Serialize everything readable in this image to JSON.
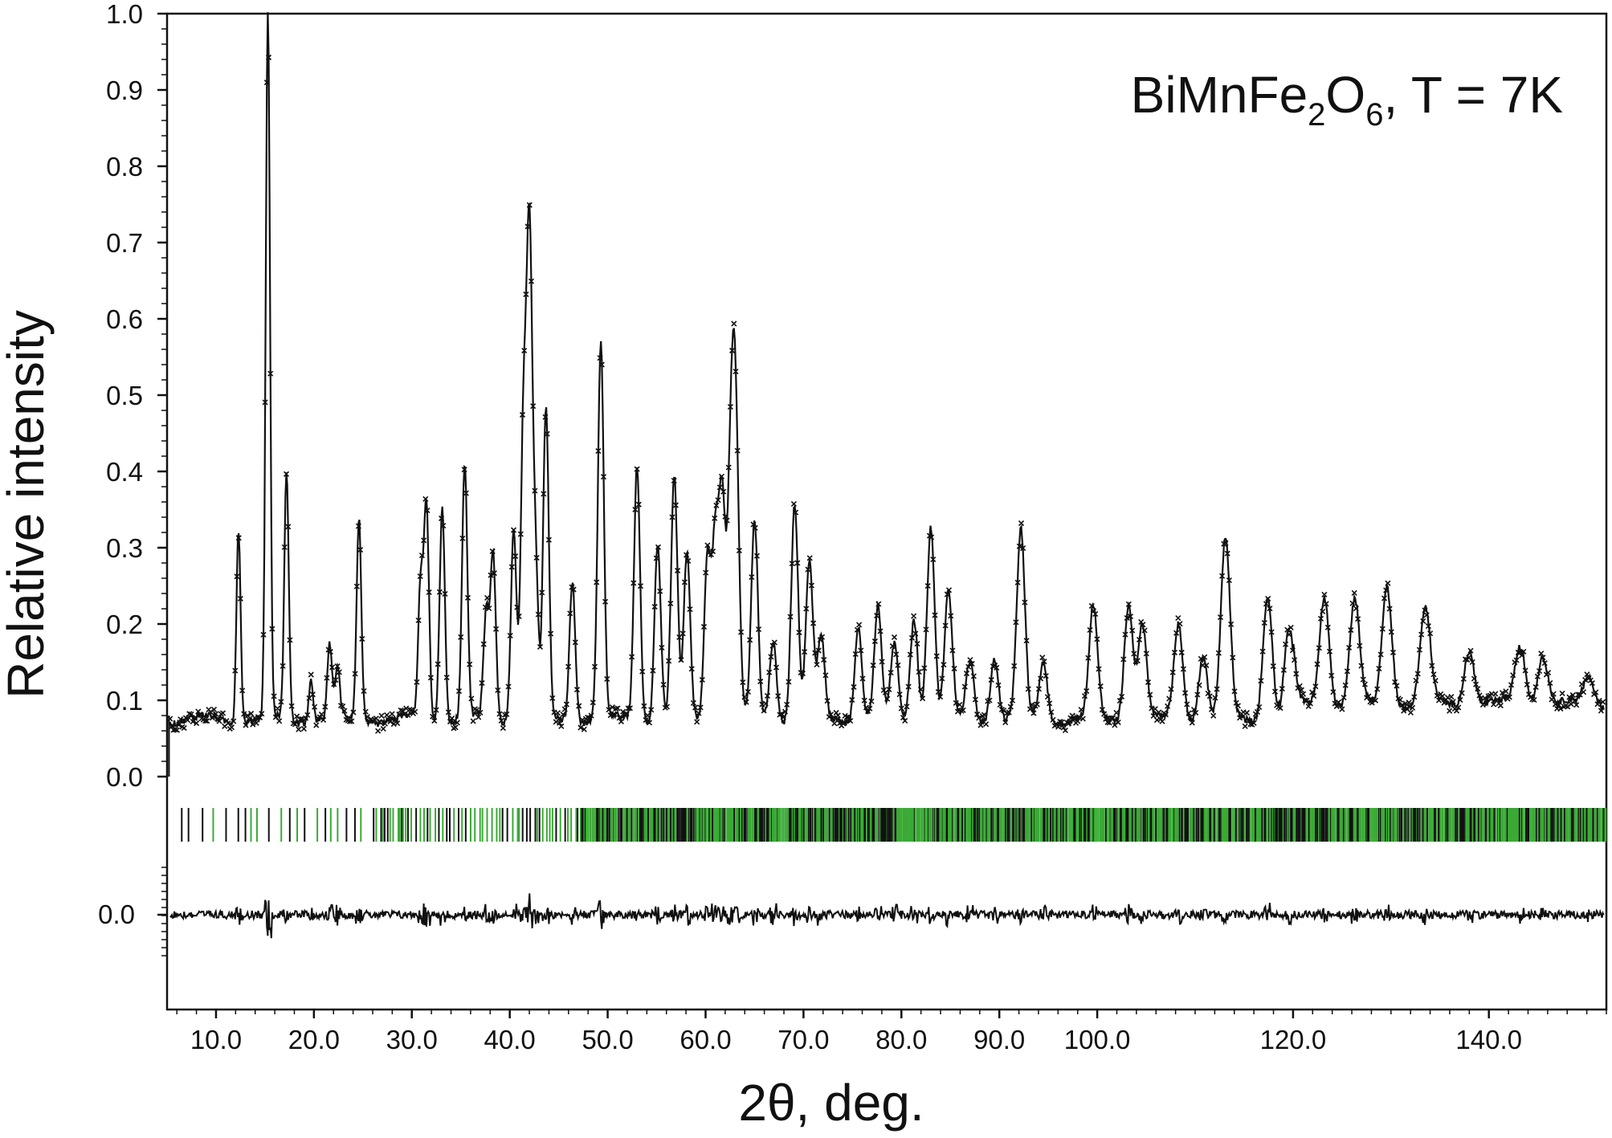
{
  "chart_data": {
    "type": "line",
    "title": "",
    "annotation": {
      "formula": "BiMnFe",
      "sub1": "2",
      "mid": "O",
      "sub2": "6",
      "tail": ", T = 7K"
    },
    "xlabel": "2θ, deg.",
    "ylabel": "Relative intensity",
    "xlim": [
      5,
      152
    ],
    "ylim": [
      0,
      1.0
    ],
    "grid": false,
    "legend": "none",
    "x_ticks": [
      10,
      20,
      30,
      40,
      50,
      60,
      70,
      80,
      90,
      100,
      120,
      140
    ],
    "x_tick_labels": [
      "10.0",
      "20.0",
      "30.0",
      "40.0",
      "50.0",
      "60.0",
      "70.0",
      "80.0",
      "90.0",
      "100.0",
      "120.0",
      "140.0"
    ],
    "y_ticks": [
      0,
      0.1,
      0.2,
      0.3,
      0.4,
      0.5,
      0.6,
      0.7,
      0.8,
      0.9,
      1.0
    ],
    "y_tick_labels": [
      "0.0",
      "0.1",
      "0.2",
      "0.3",
      "0.4",
      "0.5",
      "0.6",
      "0.7",
      "0.8",
      "0.9",
      "1.0"
    ],
    "difference_zero_label": "0.0",
    "background_level": 0.075,
    "peaks": [
      {
        "x": 12.3,
        "y": 0.33
      },
      {
        "x": 15.3,
        "y": 1.0
      },
      {
        "x": 17.2,
        "y": 0.4
      },
      {
        "x": 19.7,
        "y": 0.13
      },
      {
        "x": 21.6,
        "y": 0.17
      },
      {
        "x": 22.4,
        "y": 0.14
      },
      {
        "x": 24.6,
        "y": 0.34
      },
      {
        "x": 30.9,
        "y": 0.25
      },
      {
        "x": 31.5,
        "y": 0.35
      },
      {
        "x": 33.1,
        "y": 0.36
      },
      {
        "x": 35.4,
        "y": 0.41
      },
      {
        "x": 38.3,
        "y": 0.29
      },
      {
        "x": 37.6,
        "y": 0.21
      },
      {
        "x": 40.4,
        "y": 0.33
      },
      {
        "x": 41.4,
        "y": 0.46
      },
      {
        "x": 42.0,
        "y": 0.69
      },
      {
        "x": 42.6,
        "y": 0.28
      },
      {
        "x": 43.7,
        "y": 0.48
      },
      {
        "x": 46.4,
        "y": 0.26
      },
      {
        "x": 49.3,
        "y": 0.57
      },
      {
        "x": 53.0,
        "y": 0.41
      },
      {
        "x": 55.1,
        "y": 0.31
      },
      {
        "x": 56.8,
        "y": 0.39
      },
      {
        "x": 58.1,
        "y": 0.29
      },
      {
        "x": 60.2,
        "y": 0.29
      },
      {
        "x": 61.0,
        "y": 0.31
      },
      {
        "x": 61.7,
        "y": 0.36
      },
      {
        "x": 62.6,
        "y": 0.4
      },
      {
        "x": 63.1,
        "y": 0.42
      },
      {
        "x": 65.0,
        "y": 0.33
      },
      {
        "x": 66.9,
        "y": 0.18
      },
      {
        "x": 69.1,
        "y": 0.36
      },
      {
        "x": 70.6,
        "y": 0.28
      },
      {
        "x": 71.8,
        "y": 0.18
      },
      {
        "x": 75.6,
        "y": 0.2
      },
      {
        "x": 77.6,
        "y": 0.22
      },
      {
        "x": 79.3,
        "y": 0.17
      },
      {
        "x": 81.3,
        "y": 0.21
      },
      {
        "x": 83.0,
        "y": 0.33
      },
      {
        "x": 84.8,
        "y": 0.24
      },
      {
        "x": 87.0,
        "y": 0.15
      },
      {
        "x": 89.5,
        "y": 0.16
      },
      {
        "x": 92.2,
        "y": 0.32
      },
      {
        "x": 94.5,
        "y": 0.15
      },
      {
        "x": 99.6,
        "y": 0.22
      },
      {
        "x": 103.2,
        "y": 0.23
      },
      {
        "x": 104.6,
        "y": 0.2
      },
      {
        "x": 108.3,
        "y": 0.2
      },
      {
        "x": 110.8,
        "y": 0.16
      },
      {
        "x": 113.1,
        "y": 0.31
      },
      {
        "x": 117.4,
        "y": 0.24
      },
      {
        "x": 119.6,
        "y": 0.19
      },
      {
        "x": 123.2,
        "y": 0.22
      },
      {
        "x": 126.3,
        "y": 0.21
      },
      {
        "x": 129.6,
        "y": 0.23
      },
      {
        "x": 133.5,
        "y": 0.2
      },
      {
        "x": 138.0,
        "y": 0.15
      },
      {
        "x": 143.2,
        "y": 0.15
      },
      {
        "x": 145.5,
        "y": 0.14
      },
      {
        "x": 150.2,
        "y": 0.11
      }
    ],
    "reflection_markers": {
      "start": 6.5,
      "end": 152,
      "colors": [
        "#3aaa35",
        "#111111"
      ]
    },
    "series": [
      {
        "values": "observed (crosses)"
      },
      {
        "values": "calculated (line)"
      },
      {
        "values": "difference (line)"
      }
    ]
  }
}
